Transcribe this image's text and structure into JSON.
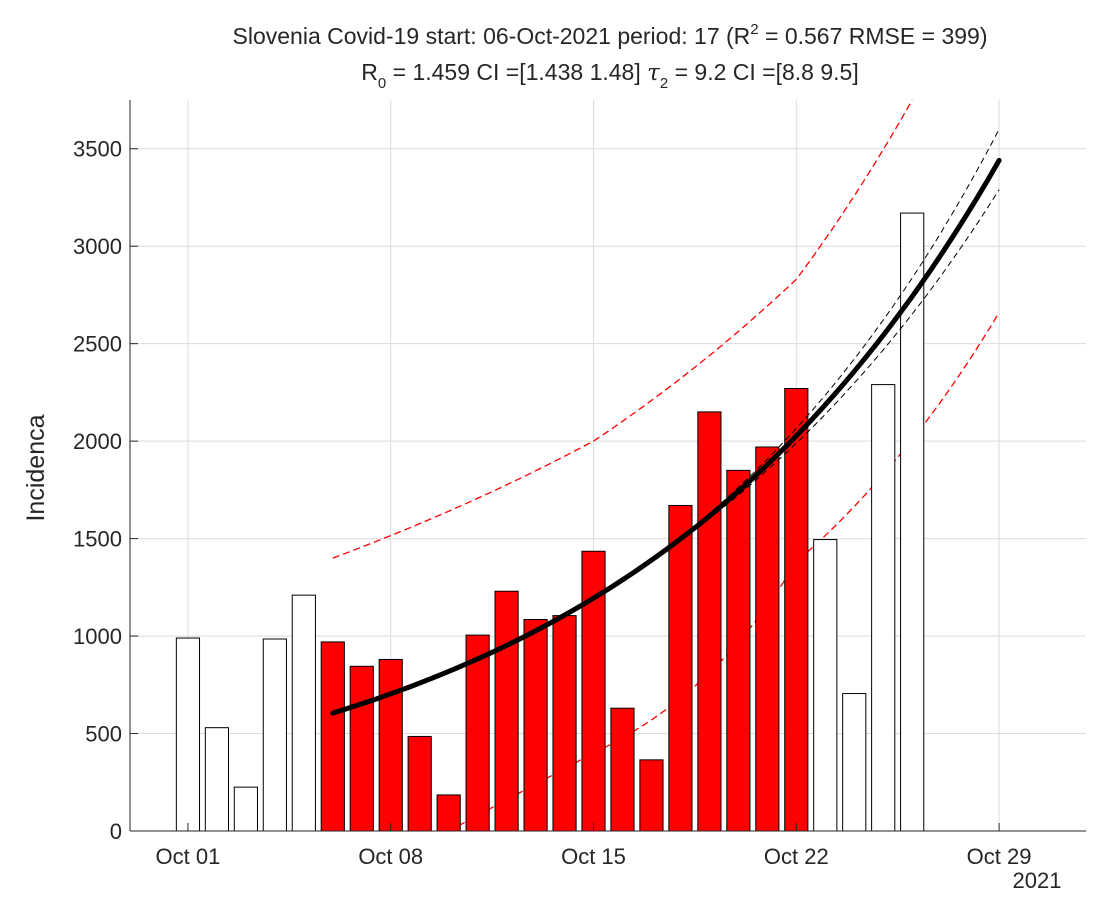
{
  "chart_data": {
    "type": "bar",
    "title_line1": "Slovenia Covid-19 start: 06-Oct-2021 period: 17 (R",
    "title_line1_sup": "2",
    "title_line1_end": " = 0.567  RMSE = 399)",
    "title_line2_a": "R",
    "title_line2_sub_a": "0",
    "title_line2_b": " = 1.459  CI =[1.438 1.48]  ",
    "title_line2_c": "τ",
    "title_line2_sub_c": "2",
    "title_line2_d": " = 9.2  CI =[8.8 9.5]",
    "ylabel": "Incidenca",
    "xlabel": "",
    "x_year_label": "2021",
    "ylim": [
      0,
      3750
    ],
    "xlim_days": [
      "2021-09-29",
      "2021-11-01"
    ],
    "y_ticks": [
      "0",
      "500",
      "1000",
      "1500",
      "2000",
      "2500",
      "3000",
      "3500"
    ],
    "y_tick_values": [
      0,
      500,
      1000,
      1500,
      2000,
      2500,
      3000,
      3500
    ],
    "x_ticks": [
      {
        "label": "Oct 01",
        "date": "2021-10-01"
      },
      {
        "label": "Oct 08",
        "date": "2021-10-08"
      },
      {
        "label": "Oct 15",
        "date": "2021-10-15"
      },
      {
        "label": "Oct 22",
        "date": "2021-10-22"
      },
      {
        "label": "Oct 29",
        "date": "2021-10-29"
      }
    ],
    "grid": true,
    "bars": [
      {
        "date": "2021-10-01",
        "value": 990,
        "fitted": false
      },
      {
        "date": "2021-10-02",
        "value": 530,
        "fitted": false
      },
      {
        "date": "2021-10-03",
        "value": 225,
        "fitted": false
      },
      {
        "date": "2021-10-04",
        "value": 985,
        "fitted": false
      },
      {
        "date": "2021-10-05",
        "value": 1210,
        "fitted": false
      },
      {
        "date": "2021-10-06",
        "value": 970,
        "fitted": true
      },
      {
        "date": "2021-10-07",
        "value": 845,
        "fitted": true
      },
      {
        "date": "2021-10-08",
        "value": 880,
        "fitted": true
      },
      {
        "date": "2021-10-09",
        "value": 485,
        "fitted": true
      },
      {
        "date": "2021-10-10",
        "value": 185,
        "fitted": true
      },
      {
        "date": "2021-10-11",
        "value": 1005,
        "fitted": true
      },
      {
        "date": "2021-10-12",
        "value": 1230,
        "fitted": true
      },
      {
        "date": "2021-10-13",
        "value": 1085,
        "fitted": true
      },
      {
        "date": "2021-10-14",
        "value": 1105,
        "fitted": true
      },
      {
        "date": "2021-10-15",
        "value": 1435,
        "fitted": true
      },
      {
        "date": "2021-10-16",
        "value": 630,
        "fitted": true
      },
      {
        "date": "2021-10-17",
        "value": 365,
        "fitted": true
      },
      {
        "date": "2021-10-18",
        "value": 1670,
        "fitted": true
      },
      {
        "date": "2021-10-19",
        "value": 2150,
        "fitted": true
      },
      {
        "date": "2021-10-20",
        "value": 1850,
        "fitted": true
      },
      {
        "date": "2021-10-21",
        "value": 1970,
        "fitted": true
      },
      {
        "date": "2021-10-22",
        "value": 2270,
        "fitted": true
      },
      {
        "date": "2021-10-23",
        "value": 1495,
        "fitted": false
      },
      {
        "date": "2021-10-24",
        "value": 705,
        "fitted": false
      },
      {
        "date": "2021-10-25",
        "value": 2290,
        "fitted": false
      },
      {
        "date": "2021-10-26",
        "value": 3170,
        "fitted": false
      }
    ],
    "fit": {
      "start_date": "2021-10-06",
      "end_date": "2021-10-29",
      "start_value": 605,
      "end_value": 3440,
      "ci_upper_end": 3600,
      "ci_lower_end": 3290
    },
    "prediction_band": {
      "upper": [
        {
          "date": "2021-10-06",
          "value": 1400
        },
        {
          "date": "2021-10-15",
          "value": 2000
        },
        {
          "date": "2021-10-22",
          "value": 2830
        },
        {
          "date": "2021-10-26",
          "value": 3750
        }
      ],
      "lower": [
        {
          "date": "2021-10-10",
          "value": 0
        },
        {
          "date": "2021-10-15",
          "value": 400
        },
        {
          "date": "2021-10-22",
          "value": 1380
        },
        {
          "date": "2021-10-29",
          "value": 2660
        }
      ]
    },
    "colors": {
      "fitted_bar": "#ff0000",
      "other_bar": "#ffffff",
      "bar_edge": "#000000",
      "fit_line": "#000000",
      "ci_line": "#000000",
      "prediction_line": "#ff0000"
    }
  }
}
